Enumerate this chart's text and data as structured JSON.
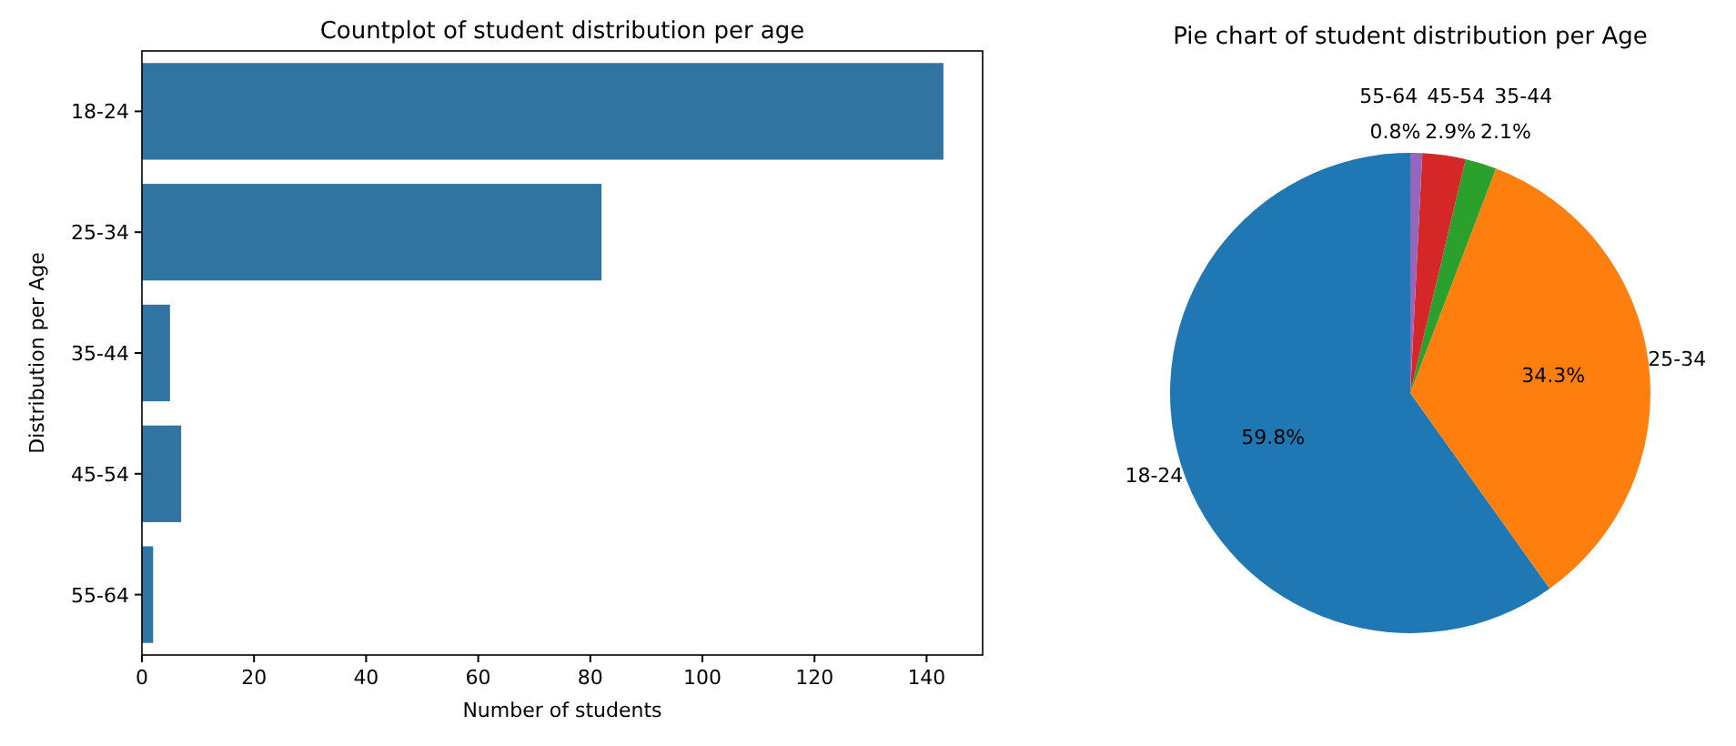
{
  "chart_data": [
    {
      "type": "bar",
      "title": "Countplot of student distribution per age",
      "orientation": "horizontal",
      "categories": [
        "18-24",
        "25-34",
        "35-44",
        "45-54",
        "55-64"
      ],
      "values": [
        143,
        82,
        5,
        7,
        2
      ],
      "color": "#3274a1",
      "xlim": [
        0,
        150
      ],
      "xticks": [
        0,
        20,
        40,
        60,
        80,
        100,
        120,
        140
      ],
      "xlabel": "Number of students",
      "ylabel": "Distribution per Age"
    },
    {
      "type": "pie",
      "title": "Pie chart of student distribution per Age",
      "categories": [
        "18-24",
        "25-34",
        "35-44",
        "45-54",
        "55-64"
      ],
      "values": [
        59.8,
        34.3,
        2.1,
        2.9,
        0.8
      ],
      "colors": [
        "#1f77b4",
        "#ff7f0e",
        "#2ca02c",
        "#d62728",
        "#9467bd"
      ],
      "value_labels": [
        "59.8%",
        "34.3%",
        "2.1%",
        "2.9%",
        "0.8%"
      ]
    }
  ]
}
